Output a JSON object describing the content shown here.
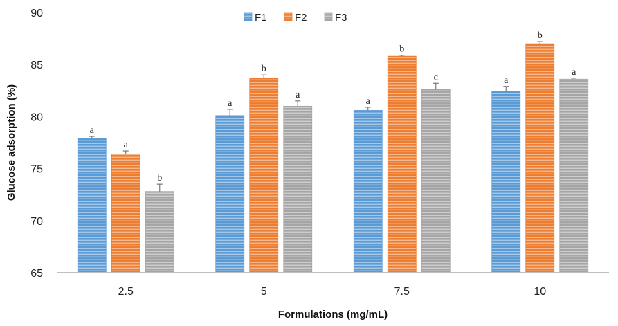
{
  "chart_data": {
    "type": "bar",
    "title": "",
    "xlabel": "Formulations (mg/mL)",
    "ylabel": "Glucose adsorption (%)",
    "ylim": [
      65,
      90
    ],
    "yticks": [
      65,
      70,
      75,
      80,
      85,
      90
    ],
    "categories": [
      "2.5",
      "5",
      "7.5",
      "10"
    ],
    "legend_position": "top-center",
    "grid": false,
    "series": [
      {
        "name": "F1",
        "color": "#5b9bd5",
        "values": [
          77.9,
          80.1,
          80.6,
          82.4
        ],
        "errors": [
          0.2,
          0.6,
          0.3,
          0.5
        ],
        "labels": [
          "a",
          "a",
          "a",
          "a"
        ]
      },
      {
        "name": "F2",
        "color": "#ed7d31",
        "values": [
          76.4,
          83.7,
          85.8,
          87.0
        ],
        "errors": [
          0.3,
          0.3,
          0.1,
          0.2
        ],
        "labels": [
          "a",
          "b",
          "b",
          "b"
        ]
      },
      {
        "name": "F3",
        "color": "#a5a5a5",
        "values": [
          72.8,
          81.0,
          82.6,
          83.6
        ],
        "errors": [
          0.7,
          0.5,
          0.6,
          0.1
        ],
        "labels": [
          "b",
          "a",
          "c",
          "a"
        ]
      }
    ]
  }
}
